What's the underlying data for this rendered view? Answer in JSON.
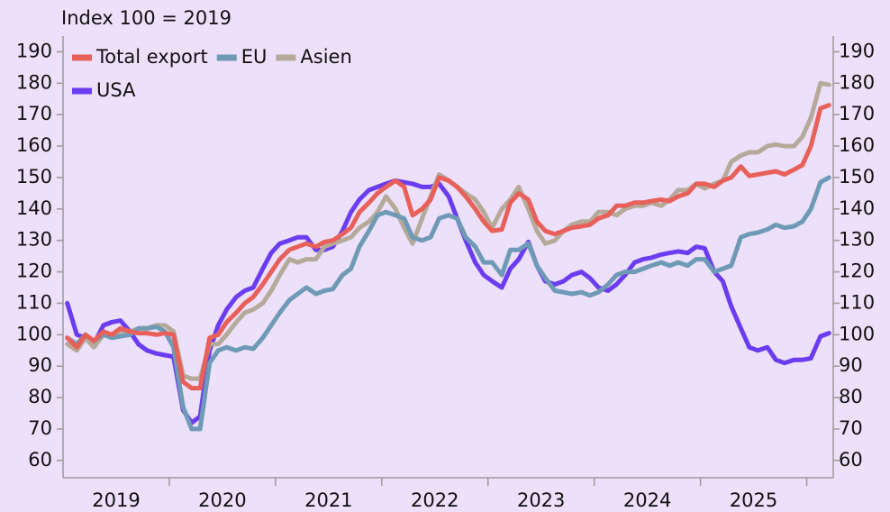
{
  "chart_data": {
    "type": "line",
    "annotation": "Index 100 = 2019",
    "legend": "upper left",
    "xlim": [
      2019,
      2026.25
    ],
    "xticks": [
      {
        "value": 2019.5,
        "label": "2019"
      },
      {
        "value": 2020.5,
        "label": "2020"
      },
      {
        "value": 2021.5,
        "label": "2021"
      },
      {
        "value": 2022.5,
        "label": "2022"
      },
      {
        "value": 2023.5,
        "label": "2023"
      },
      {
        "value": 2024.5,
        "label": "2024"
      },
      {
        "value": 2025.5,
        "label": "2025"
      }
    ],
    "ylim": [
      54.5,
      195
    ],
    "yticks": [
      60,
      70,
      80,
      90,
      100,
      110,
      120,
      130,
      140,
      150,
      160,
      170,
      180,
      190
    ],
    "y2lim": [
      54.5,
      195
    ],
    "y2ticks": [
      60,
      70,
      80,
      90,
      100,
      110,
      120,
      130,
      140,
      150,
      160,
      170,
      180,
      190
    ],
    "x": [
      2019.04,
      2019.13,
      2019.21,
      2019.29,
      2019.38,
      2019.46,
      2019.54,
      2019.63,
      2019.71,
      2019.79,
      2019.88,
      2019.96,
      2020.04,
      2020.13,
      2020.21,
      2020.29,
      2020.38,
      2020.46,
      2020.54,
      2020.63,
      2020.71,
      2020.79,
      2020.88,
      2020.96,
      2021.04,
      2021.13,
      2021.21,
      2021.29,
      2021.38,
      2021.46,
      2021.54,
      2021.63,
      2021.71,
      2021.79,
      2021.88,
      2021.96,
      2022.04,
      2022.13,
      2022.21,
      2022.29,
      2022.38,
      2022.46,
      2022.54,
      2022.63,
      2022.71,
      2022.79,
      2022.88,
      2022.96,
      2023.04,
      2023.13,
      2023.21,
      2023.29,
      2023.38,
      2023.46,
      2023.54,
      2023.63,
      2023.71,
      2023.79,
      2023.88,
      2023.96,
      2024.04,
      2024.13,
      2024.21,
      2024.29,
      2024.38,
      2024.46,
      2024.54,
      2024.63,
      2024.71,
      2024.79,
      2024.88,
      2024.96,
      2025.04,
      2025.13,
      2025.21,
      2025.29,
      2025.38,
      2025.46,
      2025.54,
      2025.63,
      2025.71,
      2025.79,
      2025.88,
      2025.96,
      2026.04,
      2026.13,
      2026.21
    ],
    "series": [
      {
        "name": "Total export",
        "color": "#e8605a",
        "values": [
          99,
          96,
          100,
          98,
          101,
          100,
          102,
          101,
          100.5,
          100.5,
          100,
          100.5,
          100,
          85,
          83,
          83,
          99,
          100,
          104,
          107,
          110,
          112,
          116,
          120,
          124,
          127,
          128,
          129,
          128,
          129.5,
          130,
          132,
          134,
          139,
          142,
          145,
          147,
          149,
          147,
          138,
          140,
          143,
          150,
          149,
          147,
          144,
          140,
          136,
          133,
          133.5,
          142,
          145,
          143,
          136,
          133,
          132,
          133,
          134,
          134.5,
          135,
          137,
          138,
          141,
          141,
          142,
          142,
          142.5,
          143,
          142.5,
          144,
          145,
          148,
          148,
          147,
          149,
          150,
          153.5,
          150.5,
          151,
          151.5,
          152,
          151,
          152.5,
          154,
          160,
          172,
          173
        ]
      },
      {
        "name": "EU",
        "color": "#6f9ab5",
        "values": [
          99,
          97,
          100,
          98,
          100,
          99,
          99.5,
          100,
          102,
          102,
          102.5,
          101,
          96,
          77,
          70,
          70,
          91,
          95,
          96,
          95,
          96,
          95.5,
          99,
          103,
          107,
          111,
          113,
          115,
          113,
          114,
          114.5,
          119,
          121,
          128,
          133,
          138,
          139,
          138,
          137,
          131,
          130,
          131,
          137,
          138,
          137,
          131,
          128,
          123,
          123,
          119,
          127,
          127,
          129,
          122,
          118,
          114,
          113.5,
          113,
          113.5,
          112.5,
          113.5,
          116,
          119,
          120,
          120,
          121,
          122,
          123,
          122,
          123,
          122,
          124,
          124,
          120,
          121,
          122,
          131,
          132,
          132.5,
          133.5,
          135,
          134,
          134.5,
          136,
          140,
          148.5,
          150
        ]
      },
      {
        "name": "Asien",
        "color": "#b5aa9a",
        "values": [
          97,
          95,
          99,
          96,
          100,
          100,
          101,
          101,
          102,
          102,
          103,
          103,
          101,
          87,
          86,
          86,
          97,
          97,
          100,
          104,
          107,
          108,
          110,
          114,
          119,
          124,
          123,
          124,
          124,
          128,
          129,
          130,
          131,
          134,
          136,
          139,
          144,
          140,
          134,
          129,
          137,
          144,
          151,
          149,
          147,
          145,
          143,
          139,
          134,
          140,
          143,
          147,
          140,
          133,
          129,
          130,
          133,
          135,
          136,
          136,
          139,
          139,
          138,
          140,
          141,
          141,
          142,
          141,
          143,
          146,
          146,
          148,
          146.5,
          148,
          149,
          155,
          157,
          158,
          158,
          160,
          160.5,
          160,
          160,
          163,
          169,
          180,
          179.5
        ]
      },
      {
        "name": "USA",
        "color": "#6a3df0",
        "values": [
          110,
          100,
          99,
          97,
          103,
          104,
          104.5,
          101,
          97,
          95,
          94,
          93.5,
          93,
          76,
          72,
          74,
          95,
          103,
          108,
          112,
          114,
          115,
          121,
          126,
          129,
          130,
          131,
          131,
          127,
          127,
          128,
          133,
          139,
          143,
          146,
          147,
          148,
          149,
          148.5,
          148,
          147,
          147,
          148,
          144,
          137,
          130,
          123,
          119,
          117,
          115,
          121,
          124,
          129.5,
          122,
          117,
          116,
          117,
          119,
          120,
          118,
          115,
          114,
          116,
          119,
          123,
          124,
          124.5,
          125.5,
          126,
          126.5,
          126,
          128,
          127.5,
          120,
          117,
          109,
          102,
          96,
          95,
          96,
          92,
          91,
          92,
          92,
          92.5,
          99.5,
          100.5
        ]
      }
    ]
  }
}
